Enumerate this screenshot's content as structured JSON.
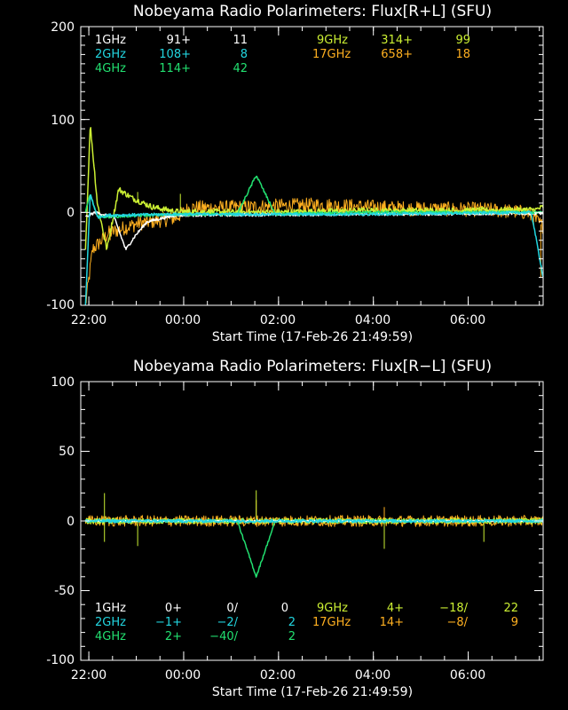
{
  "colors": {
    "1GHz": "#ffffff",
    "2GHz": "#22d6e0",
    "4GHz": "#22e070",
    "9GHz": "#ccf033",
    "17GHz": "#ffb020"
  },
  "chart_data": [
    {
      "type": "line",
      "title": "Nobeyama Radio Polarimeters: Flux[R+L] (SFU)",
      "xlabel": "Start Time (17-Feb-26 21:49:59)",
      "x_unit": "hours since 17-Feb-26 21:49:59",
      "xlim": [
        0,
        9.75
      ],
      "ylim": [
        -100,
        200
      ],
      "yticks": [
        "200",
        "100",
        "0",
        "-100"
      ],
      "xticks": [
        {
          "label": "22:00",
          "x": 0.17
        },
        {
          "label": "00:00",
          "x": 2.17
        },
        {
          "label": "02:00",
          "x": 4.17
        },
        {
          "label": "04:00",
          "x": 6.17
        },
        {
          "label": "06:00",
          "x": 8.17
        }
      ],
      "legend": [
        {
          "name": "1GHz",
          "base": "91+",
          "value": "11"
        },
        {
          "name": "2GHz",
          "base": "108+",
          "value": "8"
        },
        {
          "name": "4GHz",
          "base": "114+",
          "value": "42"
        },
        {
          "name": "9GHz",
          "base": "314+",
          "value": "99"
        },
        {
          "name": "17GHz",
          "base": "658+",
          "value": "18"
        }
      ],
      "series": [
        {
          "name": "17GHz",
          "noise": 8,
          "points": [
            [
              0.1,
              -100
            ],
            [
              0.25,
              -40
            ],
            [
              0.6,
              -22
            ],
            [
              1.2,
              -12
            ],
            [
              2.0,
              -6
            ],
            [
              2.3,
              5
            ],
            [
              3.0,
              5
            ],
            [
              5.0,
              8
            ],
            [
              6.0,
              6
            ],
            [
              7.0,
              4
            ],
            [
              8.5,
              3
            ],
            [
              9.4,
              0
            ],
            [
              9.75,
              -15
            ]
          ],
          "spikes": [
            [
              0.62,
              -30
            ],
            [
              9.7,
              -70
            ]
          ]
        },
        {
          "name": "9GHz",
          "noise": 3,
          "points": [
            [
              0.1,
              -40
            ],
            [
              0.2,
              95
            ],
            [
              0.35,
              10
            ],
            [
              0.55,
              -40
            ],
            [
              0.8,
              25
            ],
            [
              1.1,
              15
            ],
            [
              1.5,
              6
            ],
            [
              2.0,
              1
            ],
            [
              4.0,
              0
            ],
            [
              6.0,
              2
            ],
            [
              8.0,
              2
            ],
            [
              9.6,
              3
            ],
            [
              9.75,
              6
            ]
          ],
          "spikes": [
            [
              1.2,
              22
            ],
            [
              2.1,
              20
            ]
          ]
        },
        {
          "name": "1GHz",
          "noise": 1.5,
          "points": [
            [
              0.1,
              -5
            ],
            [
              0.3,
              0
            ],
            [
              0.7,
              -5
            ],
            [
              0.95,
              -40
            ],
            [
              1.15,
              -25
            ],
            [
              1.4,
              -10
            ],
            [
              2.0,
              -3
            ],
            [
              6.0,
              -2
            ],
            [
              9.75,
              -1
            ]
          ],
          "spikes": []
        },
        {
          "name": "4GHz",
          "noise": 1.5,
          "points": [
            [
              0.1,
              0
            ],
            [
              0.2,
              20
            ],
            [
              0.35,
              -5
            ],
            [
              2.0,
              -2
            ],
            [
              3.3,
              -2
            ],
            [
              3.7,
              40
            ],
            [
              4.1,
              -2
            ],
            [
              6.0,
              0
            ],
            [
              9.75,
              0
            ]
          ],
          "spikes": []
        },
        {
          "name": "2GHz",
          "noise": 1.5,
          "points": [
            [
              0.1,
              -100
            ],
            [
              0.2,
              20
            ],
            [
              0.35,
              -5
            ],
            [
              0.6,
              -3
            ],
            [
              2.0,
              -2
            ],
            [
              6.0,
              -2
            ],
            [
              9.5,
              0
            ],
            [
              9.75,
              -70
            ]
          ],
          "spikes": []
        }
      ]
    },
    {
      "type": "line",
      "title": "Nobeyama Radio Polarimeters: Flux[R−L] (SFU)",
      "xlabel": "Start Time (17-Feb-26 21:49:59)",
      "x_unit": "hours since 17-Feb-26 21:49:59",
      "xlim": [
        0,
        9.75
      ],
      "ylim": [
        -100,
        100
      ],
      "yticks": [
        "100",
        "50",
        "0",
        "-50",
        "-100"
      ],
      "xticks": [
        {
          "label": "22:00",
          "x": 0.17
        },
        {
          "label": "00:00",
          "x": 2.17
        },
        {
          "label": "02:00",
          "x": 4.17
        },
        {
          "label": "04:00",
          "x": 6.17
        },
        {
          "label": "06:00",
          "x": 8.17
        }
      ],
      "legend": [
        {
          "name": "1GHz",
          "base": "0+",
          "ratio": "0/",
          "value": "0"
        },
        {
          "name": "2GHz",
          "base": "−1+",
          "ratio": "−2/",
          "value": "2"
        },
        {
          "name": "4GHz",
          "base": "2+",
          "ratio": "−40/",
          "value": "2"
        },
        {
          "name": "9GHz",
          "base": "4+",
          "ratio": "−18/",
          "value": "22"
        },
        {
          "name": "17GHz",
          "base": "14+",
          "ratio": "−8/",
          "value": "9"
        }
      ],
      "series": [
        {
          "name": "17GHz",
          "noise": 4,
          "points": [
            [
              0.1,
              0
            ],
            [
              9.75,
              0
            ]
          ],
          "spikes": [
            [
              3.7,
              15
            ],
            [
              6.4,
              10
            ]
          ]
        },
        {
          "name": "9GHz",
          "noise": 2,
          "points": [
            [
              0.1,
              0
            ],
            [
              9.75,
              0
            ]
          ],
          "spikes": [
            [
              0.5,
              -15
            ],
            [
              0.5,
              20
            ],
            [
              1.2,
              -18
            ],
            [
              3.7,
              22
            ],
            [
              6.4,
              -20
            ],
            [
              8.5,
              -15
            ]
          ]
        },
        {
          "name": "4GHz",
          "noise": 0.8,
          "points": [
            [
              0.1,
              0
            ],
            [
              3.3,
              0
            ],
            [
              3.7,
              -40
            ],
            [
              4.1,
              0
            ],
            [
              9.75,
              0
            ]
          ],
          "spikes": []
        },
        {
          "name": "1GHz",
          "noise": 0.4,
          "points": [
            [
              0.1,
              0
            ],
            [
              9.75,
              0
            ]
          ],
          "spikes": []
        },
        {
          "name": "2GHz",
          "noise": 1.2,
          "points": [
            [
              0.1,
              0
            ],
            [
              9.75,
              0
            ]
          ],
          "spikes": []
        }
      ]
    }
  ]
}
